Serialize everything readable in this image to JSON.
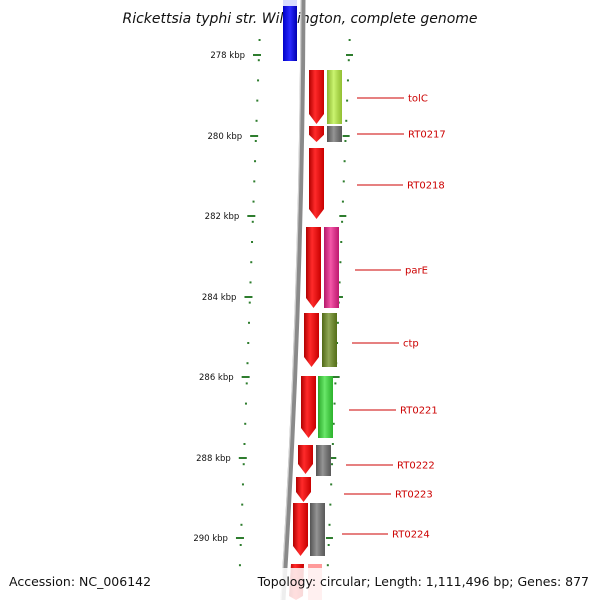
{
  "title": "Rickettsia typhi str. Wilmington, complete genome",
  "footer": {
    "accession": "Accession: NC_006142",
    "summary": "Topology: circular; Length: 1,111,496 bp; Genes: 877"
  },
  "ticks": [
    "278 kbp",
    "280 kbp",
    "282 kbp",
    "284 kbp",
    "286 kbp",
    "288 kbp",
    "290 kbp"
  ],
  "genes": [
    {
      "label": "tolC",
      "color": "#b8f040"
    },
    {
      "label": "RT0217",
      "color": "#707070"
    },
    {
      "label": "RT0218",
      "color": ""
    },
    {
      "label": "parE",
      "color": "#f0208c"
    },
    {
      "label": "ctp",
      "color": "#6b8c1e"
    },
    {
      "label": "RT0221",
      "color": "#38e038"
    },
    {
      "label": "RT0222",
      "color": "#707070"
    },
    {
      "label": "RT0223",
      "color": ""
    },
    {
      "label": "RT0224",
      "color": "#707070"
    }
  ],
  "colors": {
    "cds": "#ff0000",
    "backbone": "#8a8a8a",
    "tick": "#2e7d2e",
    "label": "#cc0000",
    "reverse_feature": "#0000ff"
  }
}
